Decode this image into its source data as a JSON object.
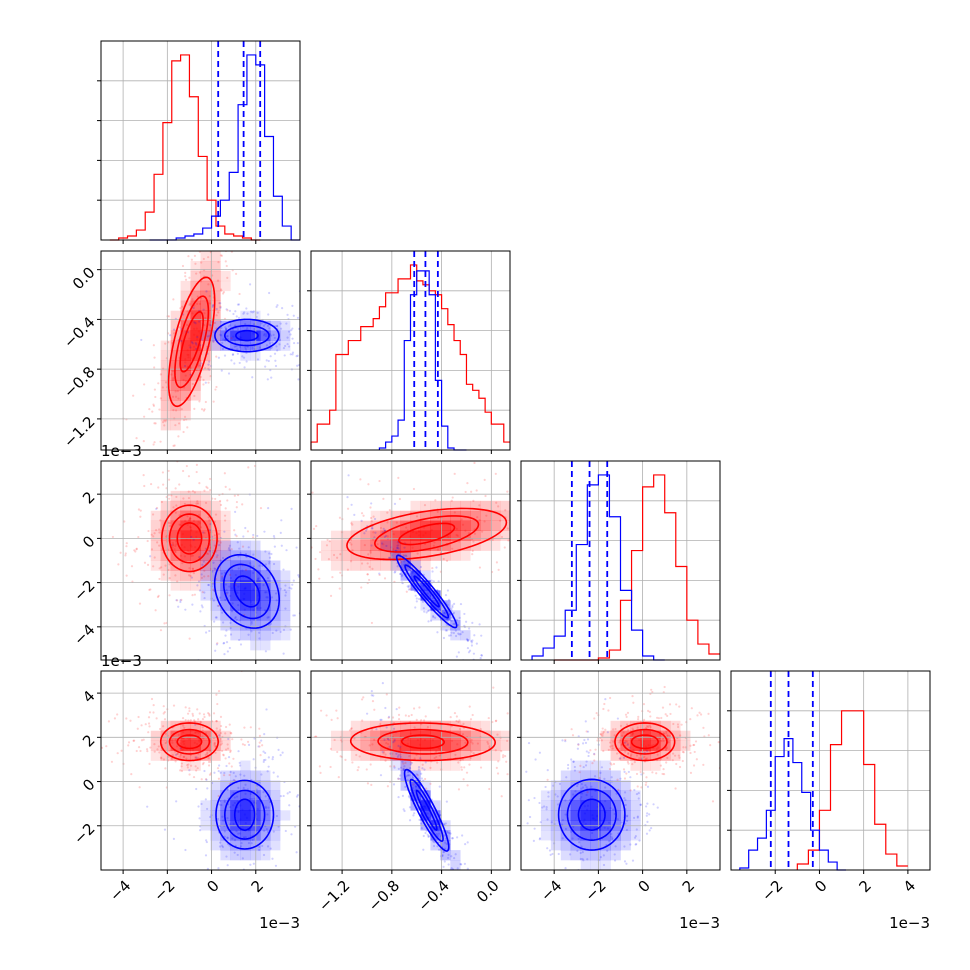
{
  "chart_data": {
    "type": "corner",
    "parameters": 4,
    "colors": {
      "red": "#ff0000",
      "blue": "#0000ff"
    },
    "grid": true,
    "scale_offsets": {
      "row2_y": "1e−3",
      "row3_y": "1e−3",
      "col1_x": "1e−3",
      "col3_x": "1e−3",
      "col4_x": "1e−3"
    },
    "params": [
      {
        "range": [
          -5.0,
          4.0
        ],
        "ticks": [
          -4,
          -2,
          0,
          2
        ],
        "tick_labels": [
          "−4",
          "−2",
          "0",
          "2"
        ]
      },
      {
        "range": [
          -1.45,
          0.15
        ],
        "ticks": [
          -1.2,
          -0.8,
          -0.4,
          0.0
        ],
        "tick_labels": [
          "−1.2",
          "−0.8",
          "−0.4",
          "0.0"
        ]
      },
      {
        "range": [
          -5.5,
          3.5
        ],
        "ticks": [
          -4,
          -2,
          0,
          2
        ],
        "tick_labels": [
          "−4",
          "−2",
          "0",
          "2"
        ]
      },
      {
        "range": [
          -4.0,
          5.0
        ],
        "ticks": [
          -2,
          0,
          2,
          4
        ],
        "tick_labels": [
          "−2",
          "0",
          "2",
          "4"
        ]
      }
    ],
    "row_tick_labels": [
      null,
      {
        "ticks": [
          -1.2,
          -0.8,
          -0.4,
          0.0
        ],
        "labels": [
          "−1.2",
          "−0.8",
          "−0.4",
          "0.0"
        ]
      },
      {
        "ticks": [
          -4,
          -2,
          0,
          2
        ],
        "labels": [
          "−4",
          "−2",
          "0",
          "2"
        ]
      },
      {
        "ticks": [
          -2,
          0,
          2,
          4
        ],
        "labels": [
          "−2",
          "0",
          "2",
          "4"
        ]
      }
    ],
    "series": [
      {
        "color": "#ff0000",
        "mean": [
          -1.0,
          -0.55,
          0.0,
          1.8
        ],
        "std": [
          0.75,
          0.27,
          0.9,
          0.6
        ],
        "contours": [
          {
            "pair": [
              0,
              1
            ],
            "center": [
              -0.9,
              -0.58
            ],
            "sx": [
              0.55,
              0.8,
              1.1
            ],
            "sy": [
              0.16,
              0.26,
              0.38
            ],
            "rot": 20
          },
          {
            "pair": [
              0,
              2
            ],
            "center": [
              -1.0,
              0.0
            ],
            "sx": [
              0.55,
              0.9,
              1.25
            ],
            "sy": [
              0.7,
              1.1,
              1.5
            ],
            "rot": 0
          },
          {
            "pair": [
              1,
              2
            ],
            "center": [
              -0.52,
              0.2
            ],
            "sx": [
              0.17,
              0.34,
              0.55
            ],
            "sy": [
              0.5,
              0.85,
              1.2
            ],
            "rot": -18
          },
          {
            "pair": [
              0,
              3
            ],
            "center": [
              -1.0,
              1.8
            ],
            "sx": [
              0.55,
              0.9,
              1.3
            ],
            "sy": [
              0.3,
              0.55,
              0.85
            ],
            "rot": 0
          },
          {
            "pair": [
              1,
              3
            ],
            "center": [
              -0.55,
              1.8
            ],
            "sx": [
              0.17,
              0.36,
              0.58
            ],
            "sy": [
              0.3,
              0.55,
              0.85
            ],
            "rot": 3
          },
          {
            "pair": [
              2,
              3
            ],
            "center": [
              0.1,
              1.8
            ],
            "sx": [
              0.6,
              1.0,
              1.35
            ],
            "sy": [
              0.3,
              0.55,
              0.85
            ],
            "rot": 0
          }
        ],
        "histograms": [
          {
            "bins": [
              -4.6,
              -4.2,
              -3.8,
              -3.4,
              -3.0,
              -2.6,
              -2.2,
              -1.8,
              -1.4,
              -1.0,
              -0.6,
              -0.2,
              0.2,
              0.6,
              1.0,
              1.4,
              1.8,
              2.2
            ],
            "counts": [
              0,
              0.01,
              0.02,
              0.05,
              0.14,
              0.33,
              0.59,
              0.9,
              0.93,
              0.72,
              0.42,
              0.2,
              0.07,
              0.03,
              0.02,
              0.01,
              0.0
            ]
          },
          {
            "bins": [
              -1.45,
              -1.4,
              -1.35,
              -1.3,
              -1.25,
              -1.2,
              -1.15,
              -1.1,
              -1.05,
              -1.0,
              -0.95,
              -0.9,
              -0.85,
              -0.8,
              -0.75,
              -0.7,
              -0.65,
              -0.6,
              -0.55,
              -0.5,
              -0.45,
              -0.4,
              -0.35,
              -0.3,
              -0.25,
              -0.2,
              -0.15,
              -0.1,
              -0.05,
              0.0,
              0.05,
              0.1,
              0.15
            ],
            "counts": [
              0.04,
              0.13,
              0.13,
              0.2,
              0.48,
              0.48,
              0.55,
              0.55,
              0.62,
              0.62,
              0.66,
              0.72,
              0.79,
              0.79,
              0.86,
              0.86,
              0.93,
              0.85,
              0.83,
              0.8,
              0.78,
              0.71,
              0.63,
              0.55,
              0.48,
              0.33,
              0.3,
              0.26,
              0.19,
              0.13,
              0.13,
              0.04
            ]
          },
          {
            "bins": [
              -4.0,
              -3.5,
              -3.0,
              -2.5,
              -2.0,
              -1.5,
              -1.0,
              -0.5,
              0.0,
              0.5,
              1.0,
              1.5,
              2.0,
              2.5,
              3.0,
              3.5
            ],
            "counts": [
              0,
              0,
              0,
              0,
              0.01,
              0.05,
              0.3,
              0.55,
              0.87,
              0.93,
              0.74,
              0.47,
              0.2,
              0.08,
              0.03
            ]
          },
          {
            "bins": [
              -1.0,
              -0.5,
              0.0,
              0.5,
              1.0,
              1.5,
              2.0,
              2.5,
              3.0,
              3.5,
              4.0
            ],
            "counts": [
              0.03,
              0.1,
              0.3,
              0.63,
              0.8,
              0.8,
              0.53,
              0.23,
              0.08,
              0.02
            ]
          }
        ]
      },
      {
        "color": "#0000ff",
        "mean": [
          1.4,
          -0.53,
          -2.3,
          -1.4
        ],
        "std": [
          0.7,
          0.1,
          0.85,
          0.75
        ],
        "quantile_lines": [
          [
            0.3,
            1.45,
            2.2
          ],
          [
            -0.62,
            -0.53,
            -0.43
          ],
          [
            -3.2,
            -2.4,
            -1.6
          ],
          [
            -2.2,
            -1.4,
            -0.3
          ]
        ],
        "contours": [
          {
            "pair": [
              0,
              1
            ],
            "center": [
              1.6,
              -0.53
            ],
            "sx": [
              0.5,
              1.0,
              1.45
            ],
            "sy": [
              0.04,
              0.08,
              0.13
            ],
            "rot": 0
          },
          {
            "pair": [
              0,
              2
            ],
            "center": [
              1.6,
              -2.4
            ],
            "sx": [
              0.5,
              0.95,
              1.35
            ],
            "sy": [
              0.75,
              1.3,
              1.75
            ],
            "rot": 30
          },
          {
            "pair": [
              1,
              2
            ],
            "center": [
              -0.52,
              -2.4
            ],
            "sx": [
              0.025,
              0.05,
              0.075
            ],
            "sy": [
              0.7,
              1.2,
              1.65
            ],
            "rot": 8
          },
          {
            "pair": [
              0,
              3
            ],
            "center": [
              1.5,
              -1.5
            ],
            "sx": [
              0.45,
              0.9,
              1.3
            ],
            "sy": [
              0.7,
              1.1,
              1.55
            ],
            "rot": 0
          },
          {
            "pair": [
              1,
              3
            ],
            "center": [
              -0.52,
              -1.3
            ],
            "sx": [
              0.025,
              0.05,
              0.075
            ],
            "sy": [
              0.9,
              1.4,
              1.85
            ],
            "rot": 5
          },
          {
            "pair": [
              2,
              3
            ],
            "center": [
              -2.3,
              -1.5
            ],
            "sx": [
              0.6,
              1.1,
              1.5
            ],
            "sy": [
              0.7,
              1.15,
              1.6
            ],
            "rot": 0
          }
        ],
        "histograms": [
          {
            "bins": [
              -2.8,
              -2.4,
              -2.0,
              -1.6,
              -1.2,
              -0.8,
              -0.4,
              0.0,
              0.4,
              0.8,
              1.2,
              1.6,
              2.0,
              2.4,
              2.8,
              3.2,
              3.6,
              4.0
            ],
            "counts": [
              0.0,
              0.0,
              0.0,
              0.01,
              0.02,
              0.03,
              0.06,
              0.12,
              0.2,
              0.34,
              0.68,
              0.93,
              0.88,
              0.52,
              0.22,
              0.07,
              0.0
            ]
          },
          {
            "bins": [
              -0.9,
              -0.85,
              -0.8,
              -0.75,
              -0.7,
              -0.65,
              -0.6,
              -0.55,
              -0.5,
              -0.45,
              -0.4,
              -0.35,
              -0.3,
              -0.25,
              -0.2
            ],
            "counts": [
              0.01,
              0.04,
              0.07,
              0.15,
              0.55,
              0.78,
              0.9,
              0.9,
              0.78,
              0.35,
              0.12,
              0.01,
              0.0,
              0.0
            ]
          },
          {
            "bins": [
              -5.0,
              -4.5,
              -4.0,
              -3.5,
              -3.0,
              -2.5,
              -2.0,
              -1.5,
              -1.0,
              -0.5,
              0.0,
              0.5,
              1.0
            ],
            "counts": [
              0.02,
              0.06,
              0.12,
              0.25,
              0.58,
              0.88,
              0.93,
              0.72,
              0.35,
              0.15,
              0.02,
              0.0
            ]
          },
          {
            "bins": [
              -3.6,
              -3.2,
              -2.8,
              -2.4,
              -2.0,
              -1.6,
              -1.2,
              -0.8,
              -0.4,
              0.0,
              0.4,
              0.8,
              1.2
            ],
            "counts": [
              0.01,
              0.1,
              0.16,
              0.3,
              0.57,
              0.66,
              0.54,
              0.39,
              0.2,
              0.1,
              0.04,
              0.0
            ]
          }
        ]
      }
    ]
  }
}
